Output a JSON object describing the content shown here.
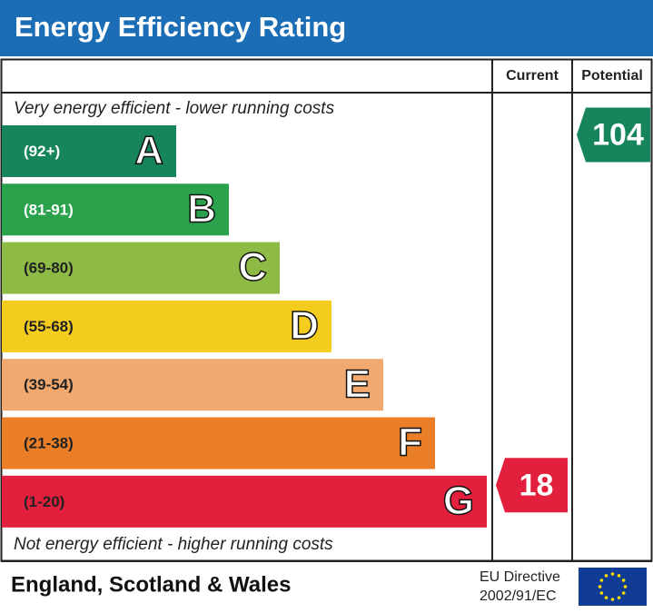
{
  "title": "Energy Efficiency Rating",
  "columns": {
    "current": "Current",
    "potential": "Potential"
  },
  "top_note": "Very energy efficient - lower running costs",
  "bottom_note": "Not energy efficient - higher running costs",
  "bands": [
    {
      "range": "(92+)",
      "letter": "A",
      "color": "#17855b"
    },
    {
      "range": "(81-91)",
      "letter": "B",
      "color": "#2aa24b"
    },
    {
      "range": "(69-80)",
      "letter": "C",
      "color": "#8dbb45"
    },
    {
      "range": "(55-68)",
      "letter": "D",
      "color": "#f4cc1e"
    },
    {
      "range": "(39-54)",
      "letter": "E",
      "color": "#f2a96f"
    },
    {
      "range": "(21-38)",
      "letter": "F",
      "color": "#eb7f27"
    },
    {
      "range": "(1-20)",
      "letter": "G",
      "color": "#e21f3d"
    }
  ],
  "current": {
    "value": 18
  },
  "potential": {
    "value": 104
  },
  "footer": {
    "region": "England, Scotland & Wales",
    "directive_line1": "EU Directive",
    "directive_line2": "2002/91/EC"
  }
}
